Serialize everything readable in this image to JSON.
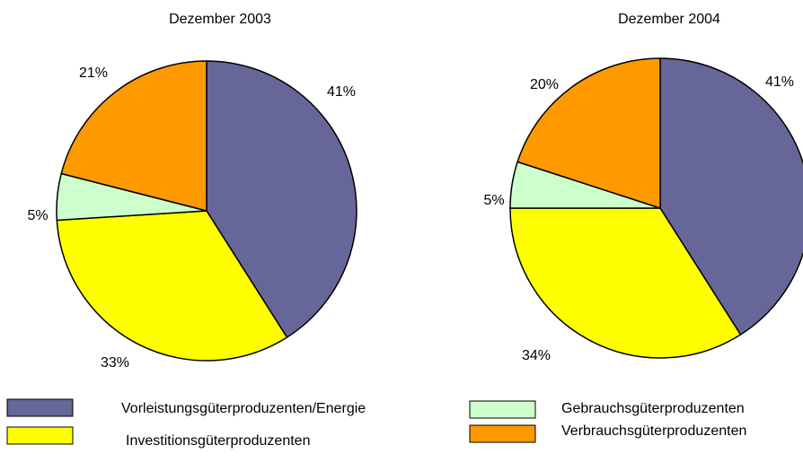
{
  "legend": {
    "categories": [
      "Vorleistungsgüterproduzenten/Energie",
      "Investitionsgüterproduzenten",
      "Gebrauchsgüterproduzenten",
      "Verbrauchsgüterproduzenten"
    ],
    "colors": [
      "#666699",
      "#ffff00",
      "#ccffcc",
      "#ff9900"
    ]
  },
  "chart_data": [
    {
      "type": "pie",
      "title": "Dezember 2003",
      "values": [
        41,
        33,
        5,
        21
      ],
      "value_labels": [
        "41%",
        "33%",
        "5%",
        "21%"
      ]
    },
    {
      "type": "pie",
      "title": "Dezember 2004",
      "values": [
        41,
        34,
        5,
        20
      ],
      "value_labels": [
        "41%",
        "34%",
        "5%",
        "20%"
      ]
    }
  ]
}
